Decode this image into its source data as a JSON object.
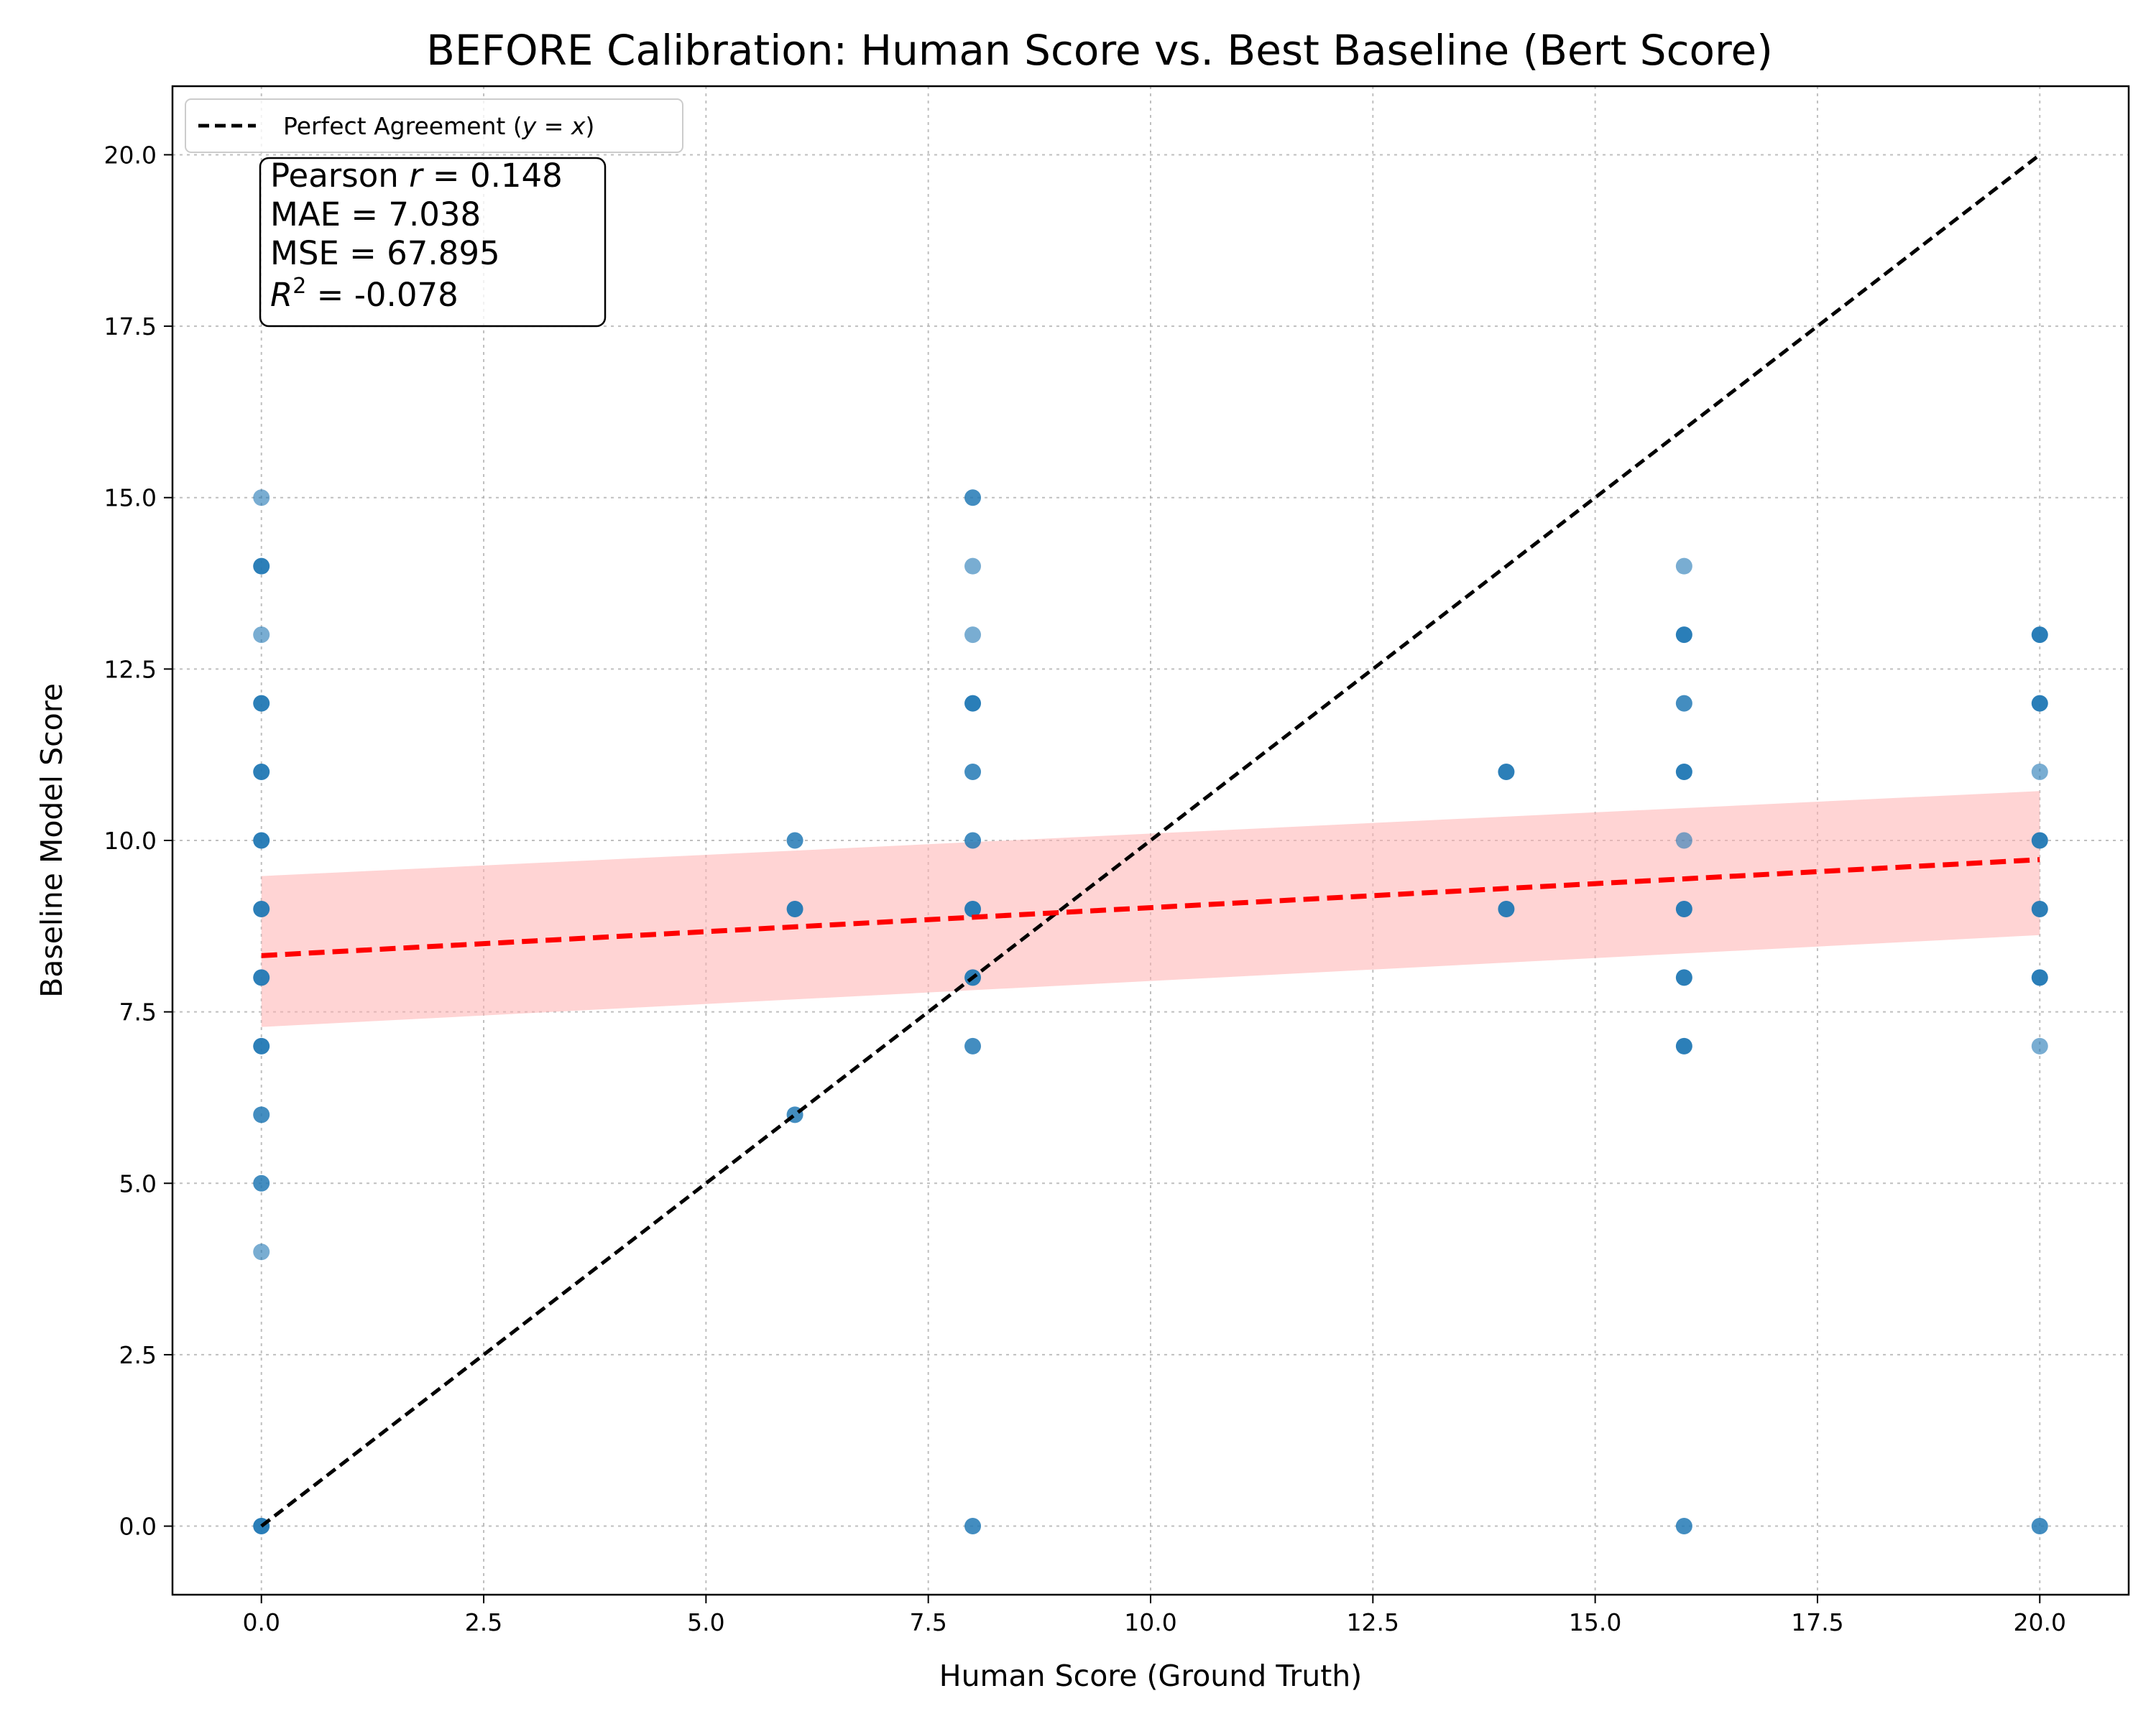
{
  "chart_data": {
    "type": "scatter",
    "title": "BEFORE Calibration: Human Score vs. Best Baseline (Bert Score)",
    "xlabel": "Human Score (Ground Truth)",
    "ylabel": "Baseline Model Score",
    "xlim": [
      -1,
      21
    ],
    "ylim": [
      -1,
      21
    ],
    "xticks": [
      0,
      2.5,
      5,
      7.5,
      10,
      12.5,
      15,
      17.5,
      20
    ],
    "xtick_labels": [
      "0.0",
      "2.5",
      "5.0",
      "7.5",
      "10.0",
      "12.5",
      "15.0",
      "17.5",
      "20.0"
    ],
    "yticks": [
      0,
      2.5,
      5,
      7.5,
      10,
      12.5,
      15,
      17.5,
      20
    ],
    "ytick_labels": [
      "0.0",
      "2.5",
      "5.0",
      "7.5",
      "10.0",
      "12.5",
      "15.0",
      "17.5",
      "20.0"
    ],
    "grid": true,
    "legend_position": "top-left",
    "identity_line": {
      "legend_label": "Perfect Agreement (y = x)",
      "x": [
        0,
        20
      ],
      "y": [
        0,
        20
      ],
      "color": "#000000"
    },
    "regression": {
      "x": [
        0,
        20
      ],
      "y": [
        8.32,
        9.72
      ],
      "band_lower": [
        7.28,
        8.62
      ],
      "band_upper": [
        9.48,
        10.72
      ],
      "line_color": "#ff0000",
      "band_color": "#ffb0b0"
    },
    "point_color": "#1f77b4",
    "points": [
      {
        "x": 0,
        "y": 15,
        "n": 1
      },
      {
        "x": 0,
        "y": 14,
        "n": 3
      },
      {
        "x": 0,
        "y": 13,
        "n": 1
      },
      {
        "x": 0,
        "y": 12,
        "n": 3
      },
      {
        "x": 0,
        "y": 11,
        "n": 3
      },
      {
        "x": 0,
        "y": 10,
        "n": 3
      },
      {
        "x": 0,
        "y": 9,
        "n": 3
      },
      {
        "x": 0,
        "y": 8,
        "n": 3
      },
      {
        "x": 0,
        "y": 7,
        "n": 3
      },
      {
        "x": 0,
        "y": 6,
        "n": 2
      },
      {
        "x": 0,
        "y": 5,
        "n": 2
      },
      {
        "x": 0,
        "y": 4,
        "n": 1
      },
      {
        "x": 0,
        "y": 0,
        "n": 4
      },
      {
        "x": 6,
        "y": 10,
        "n": 2
      },
      {
        "x": 6,
        "y": 9,
        "n": 3
      },
      {
        "x": 6,
        "y": 6,
        "n": 2
      },
      {
        "x": 8,
        "y": 15,
        "n": 2
      },
      {
        "x": 8,
        "y": 14,
        "n": 1
      },
      {
        "x": 8,
        "y": 13,
        "n": 1
      },
      {
        "x": 8,
        "y": 12,
        "n": 4
      },
      {
        "x": 8,
        "y": 11,
        "n": 2
      },
      {
        "x": 8,
        "y": 10,
        "n": 2
      },
      {
        "x": 8,
        "y": 9,
        "n": 4
      },
      {
        "x": 8,
        "y": 8,
        "n": 3
      },
      {
        "x": 8,
        "y": 7,
        "n": 2
      },
      {
        "x": 8,
        "y": 0,
        "n": 2
      },
      {
        "x": 14,
        "y": 11,
        "n": 3
      },
      {
        "x": 14,
        "y": 9,
        "n": 3
      },
      {
        "x": 16,
        "y": 14,
        "n": 1
      },
      {
        "x": 16,
        "y": 13,
        "n": 4
      },
      {
        "x": 16,
        "y": 12,
        "n": 2
      },
      {
        "x": 16,
        "y": 11,
        "n": 4
      },
      {
        "x": 16,
        "y": 10,
        "n": 1
      },
      {
        "x": 16,
        "y": 9,
        "n": 4
      },
      {
        "x": 16,
        "y": 8,
        "n": 3
      },
      {
        "x": 16,
        "y": 7,
        "n": 3
      },
      {
        "x": 16,
        "y": 0,
        "n": 2
      },
      {
        "x": 20,
        "y": 13,
        "n": 4
      },
      {
        "x": 20,
        "y": 12,
        "n": 4
      },
      {
        "x": 20,
        "y": 11,
        "n": 1
      },
      {
        "x": 20,
        "y": 10,
        "n": 3
      },
      {
        "x": 20,
        "y": 9,
        "n": 3
      },
      {
        "x": 20,
        "y": 8,
        "n": 4
      },
      {
        "x": 20,
        "y": 7,
        "n": 1
      },
      {
        "x": 20,
        "y": 0,
        "n": 2
      }
    ],
    "stats": {
      "pearson_prefix": "Pearson ",
      "pearson_symbol": "r",
      "pearson_value": " = 0.148",
      "mae": "MAE = 7.038",
      "mse": "MSE = 67.895",
      "r2_symbol": "R",
      "r2_exp": "2",
      "r2_value": " = -0.078"
    }
  }
}
